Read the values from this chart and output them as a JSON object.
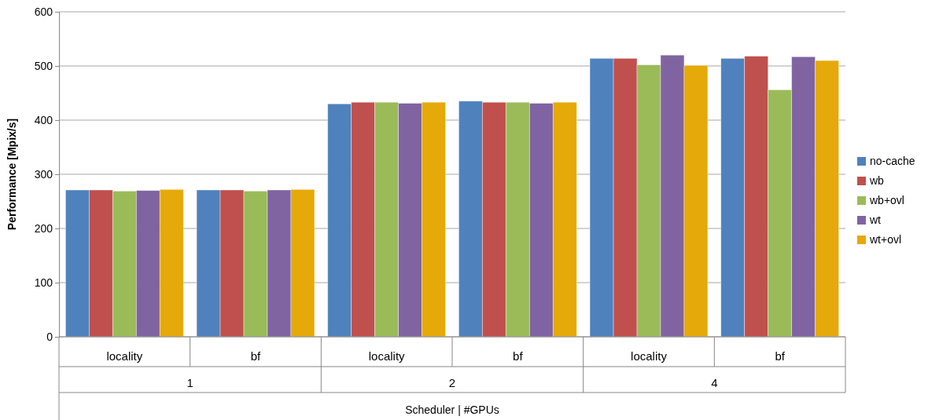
{
  "chart_data": {
    "type": "bar",
    "xlabel": "Scheduler | #GPUs",
    "ylabel": "Performance [Mpix/s]",
    "categories": [
      "locality",
      "bf",
      "locality",
      "bf",
      "locality",
      "bf"
    ],
    "annotations": [
      "1",
      "2",
      "4"
    ],
    "series": [
      {
        "name": "no-cache",
        "color": "#4f81bd",
        "values": [
          271,
          271,
          430,
          435,
          514,
          514
        ]
      },
      {
        "name": "wb",
        "color": "#c0504d",
        "values": [
          271,
          271,
          433,
          433,
          514,
          518
        ]
      },
      {
        "name": "wb+ovl",
        "color": "#9bbb59",
        "values": [
          269,
          269,
          433,
          433,
          502,
          456
        ]
      },
      {
        "name": "wt",
        "color": "#8064a2",
        "values": [
          270,
          271,
          431,
          431,
          520,
          517
        ]
      },
      {
        "name": "wt+ovl",
        "color": "#e5a909",
        "values": [
          272,
          272,
          433,
          433,
          501,
          510
        ]
      }
    ],
    "ylim": [
      0,
      600
    ],
    "yticks": [
      0,
      100,
      200,
      300,
      400,
      500,
      600
    ],
    "grid": "y",
    "legend": "right"
  }
}
